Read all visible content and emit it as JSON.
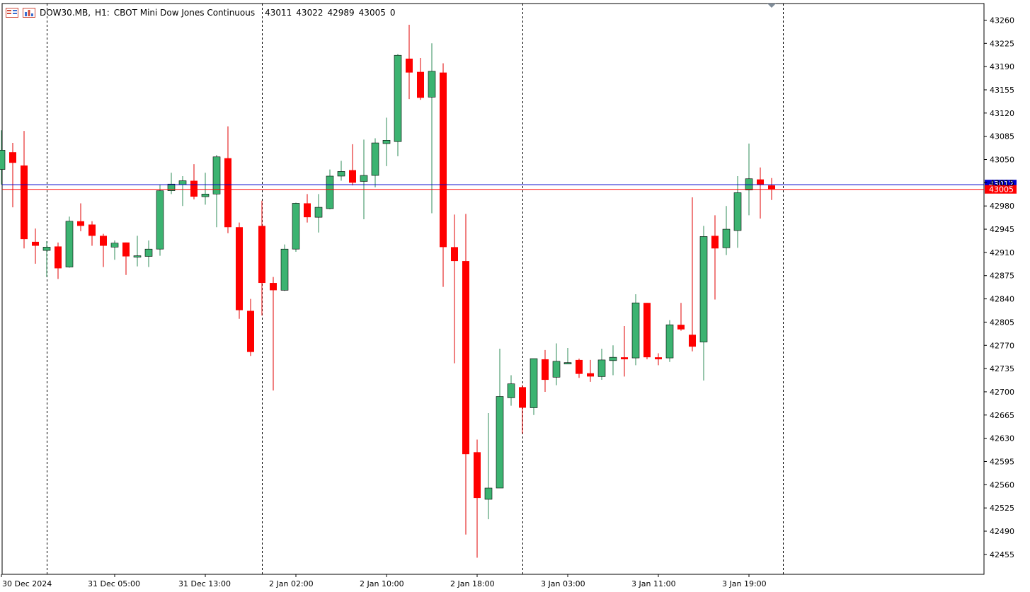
{
  "header": {
    "symbol": "DOW30.MB,",
    "timeframe": "H1:",
    "description": "CBOT Mini Dow Jones Continuous",
    "open": "43011",
    "high": "43022",
    "low": "42989",
    "close": "43005",
    "volume": "0"
  },
  "colors": {
    "bull": "#3cb371",
    "bear": "#ff0000",
    "bid_line": "#0000cd",
    "ask_line": "#ff0000",
    "grid": "#000000",
    "background": "#ffffff"
  },
  "price_labels": {
    "blue": "43012",
    "red": "43005"
  },
  "chart_data": {
    "type": "candlestick",
    "title": "DOW30.MB, H1: CBOT Mini Dow Jones Continuous",
    "ylim": [
      42425,
      43285
    ],
    "y_ticks": [
      43260,
      43225,
      43190,
      43155,
      43120,
      43085,
      43050,
      43015,
      42980,
      42945,
      42910,
      42875,
      42840,
      42805,
      42770,
      42735,
      42700,
      42665,
      42630,
      42595,
      42560,
      42525,
      42490,
      42455
    ],
    "x_ticks": [
      {
        "label": "30 Dec 2024",
        "index": 0
      },
      {
        "label": "31 Dec 05:00",
        "index": 10
      },
      {
        "label": "31 Dec 13:00",
        "index": 18
      },
      {
        "label": "2 Jan 02:00",
        "index": 26
      },
      {
        "label": "2 Jan 10:00",
        "index": 34
      },
      {
        "label": "2 Jan 18:00",
        "index": 42
      },
      {
        "label": "3 Jan 03:00",
        "index": 50
      },
      {
        "label": "3 Jan 11:00",
        "index": 58
      },
      {
        "label": "3 Jan 19:00",
        "index": 66
      }
    ],
    "day_separators": [
      4,
      23,
      46,
      69
    ],
    "bid_price": 43012,
    "ask_price": 43005,
    "candles": [
      {
        "o": 43035,
        "h": 43094,
        "l": 43012,
        "c": 43064
      },
      {
        "o": 43061,
        "h": 43075,
        "l": 42978,
        "c": 43045
      },
      {
        "o": 43041,
        "h": 43093,
        "l": 42916,
        "c": 42930
      },
      {
        "o": 42926,
        "h": 42946,
        "l": 42893,
        "c": 42920
      },
      {
        "o": 42913,
        "h": 42927,
        "l": 42873,
        "c": 42918
      },
      {
        "o": 42919,
        "h": 42925,
        "l": 42870,
        "c": 42886
      },
      {
        "o": 42888,
        "h": 42964,
        "l": 42887,
        "c": 42957
      },
      {
        "o": 42957,
        "h": 42984,
        "l": 42942,
        "c": 42950
      },
      {
        "o": 42952,
        "h": 42957,
        "l": 42920,
        "c": 42935
      },
      {
        "o": 42935,
        "h": 42938,
        "l": 42888,
        "c": 42920
      },
      {
        "o": 42918,
        "h": 42928,
        "l": 42899,
        "c": 42924
      },
      {
        "o": 42925,
        "h": 42925,
        "l": 42876,
        "c": 42904
      },
      {
        "o": 42904,
        "h": 42935,
        "l": 42889,
        "c": 42905
      },
      {
        "o": 42904,
        "h": 42928,
        "l": 42888,
        "c": 42915
      },
      {
        "o": 42915,
        "h": 43012,
        "l": 42905,
        "c": 43003
      },
      {
        "o": 43003,
        "h": 43030,
        "l": 42998,
        "c": 43013
      },
      {
        "o": 43012,
        "h": 43025,
        "l": 42980,
        "c": 43018
      },
      {
        "o": 43018,
        "h": 43043,
        "l": 42990,
        "c": 42994
      },
      {
        "o": 42994,
        "h": 43030,
        "l": 42982,
        "c": 42998
      },
      {
        "o": 42998,
        "h": 43057,
        "l": 42948,
        "c": 43054
      },
      {
        "o": 43052,
        "h": 43100,
        "l": 42939,
        "c": 42948
      },
      {
        "o": 42948,
        "h": 42955,
        "l": 42810,
        "c": 42823
      },
      {
        "o": 42822,
        "h": 42840,
        "l": 42754,
        "c": 42760
      },
      {
        "o": 42950,
        "h": 42988,
        "l": 42815,
        "c": 42864
      },
      {
        "o": 42864,
        "h": 42873,
        "l": 42702,
        "c": 42853
      },
      {
        "o": 42853,
        "h": 42922,
        "l": 42852,
        "c": 42915
      },
      {
        "o": 42915,
        "h": 42985,
        "l": 42911,
        "c": 42984
      },
      {
        "o": 42984,
        "h": 42998,
        "l": 42955,
        "c": 42963
      },
      {
        "o": 42963,
        "h": 42998,
        "l": 42940,
        "c": 42978
      },
      {
        "o": 42976,
        "h": 43035,
        "l": 42975,
        "c": 43025
      },
      {
        "o": 43025,
        "h": 43048,
        "l": 43018,
        "c": 43032
      },
      {
        "o": 43034,
        "h": 43073,
        "l": 43011,
        "c": 43015
      },
      {
        "o": 43017,
        "h": 43080,
        "l": 42960,
        "c": 43026
      },
      {
        "o": 43026,
        "h": 43082,
        "l": 43008,
        "c": 43075
      },
      {
        "o": 43074,
        "h": 43113,
        "l": 43040,
        "c": 43079
      },
      {
        "o": 43077,
        "h": 43209,
        "l": 43055,
        "c": 43207
      },
      {
        "o": 43202,
        "h": 43253,
        "l": 43141,
        "c": 43181
      },
      {
        "o": 43182,
        "h": 43203,
        "l": 43140,
        "c": 43143
      },
      {
        "o": 43144,
        "h": 43225,
        "l": 42969,
        "c": 43183
      },
      {
        "o": 43181,
        "h": 43195,
        "l": 42858,
        "c": 42918
      },
      {
        "o": 42918,
        "h": 42967,
        "l": 42743,
        "c": 42897
      },
      {
        "o": 42897,
        "h": 42968,
        "l": 42485,
        "c": 42606
      },
      {
        "o": 42609,
        "h": 42628,
        "l": 42450,
        "c": 42540
      },
      {
        "o": 42538,
        "h": 42668,
        "l": 42508,
        "c": 42555
      },
      {
        "o": 42555,
        "h": 42765,
        "l": 42555,
        "c": 42693
      },
      {
        "o": 42691,
        "h": 42725,
        "l": 42679,
        "c": 42712
      },
      {
        "o": 42707,
        "h": 42710,
        "l": 42637,
        "c": 42676
      },
      {
        "o": 42676,
        "h": 42748,
        "l": 42665,
        "c": 42750
      },
      {
        "o": 42749,
        "h": 42763,
        "l": 42700,
        "c": 42718
      },
      {
        "o": 42722,
        "h": 42773,
        "l": 42710,
        "c": 42746
      },
      {
        "o": 42742,
        "h": 42766,
        "l": 42748,
        "c": 42744
      },
      {
        "o": 42748,
        "h": 42750,
        "l": 42721,
        "c": 42727
      },
      {
        "o": 42728,
        "h": 42748,
        "l": 42715,
        "c": 42723
      },
      {
        "o": 42723,
        "h": 42765,
        "l": 42718,
        "c": 42748
      },
      {
        "o": 42747,
        "h": 42770,
        "l": 42725,
        "c": 42752
      },
      {
        "o": 42752,
        "h": 42799,
        "l": 42723,
        "c": 42749
      },
      {
        "o": 42751,
        "h": 42847,
        "l": 42740,
        "c": 42834
      },
      {
        "o": 42834,
        "h": 42828,
        "l": 42749,
        "c": 42752
      },
      {
        "o": 42752,
        "h": 42758,
        "l": 42740,
        "c": 42749
      },
      {
        "o": 42751,
        "h": 42808,
        "l": 42745,
        "c": 42801
      },
      {
        "o": 42801,
        "h": 42834,
        "l": 42792,
        "c": 42794
      },
      {
        "o": 42786,
        "h": 42993,
        "l": 42761,
        "c": 42768
      },
      {
        "o": 42775,
        "h": 42950,
        "l": 42717,
        "c": 42934
      },
      {
        "o": 42935,
        "h": 42966,
        "l": 42839,
        "c": 42916
      },
      {
        "o": 42917,
        "h": 42980,
        "l": 42906,
        "c": 42945
      },
      {
        "o": 42943,
        "h": 43025,
        "l": 42917,
        "c": 43000
      },
      {
        "o": 43004,
        "h": 43074,
        "l": 42966,
        "c": 43021
      },
      {
        "o": 43020,
        "h": 43038,
        "l": 42961,
        "c": 43012
      },
      {
        "o": 43011,
        "h": 43022,
        "l": 42989,
        "c": 43005
      }
    ]
  }
}
